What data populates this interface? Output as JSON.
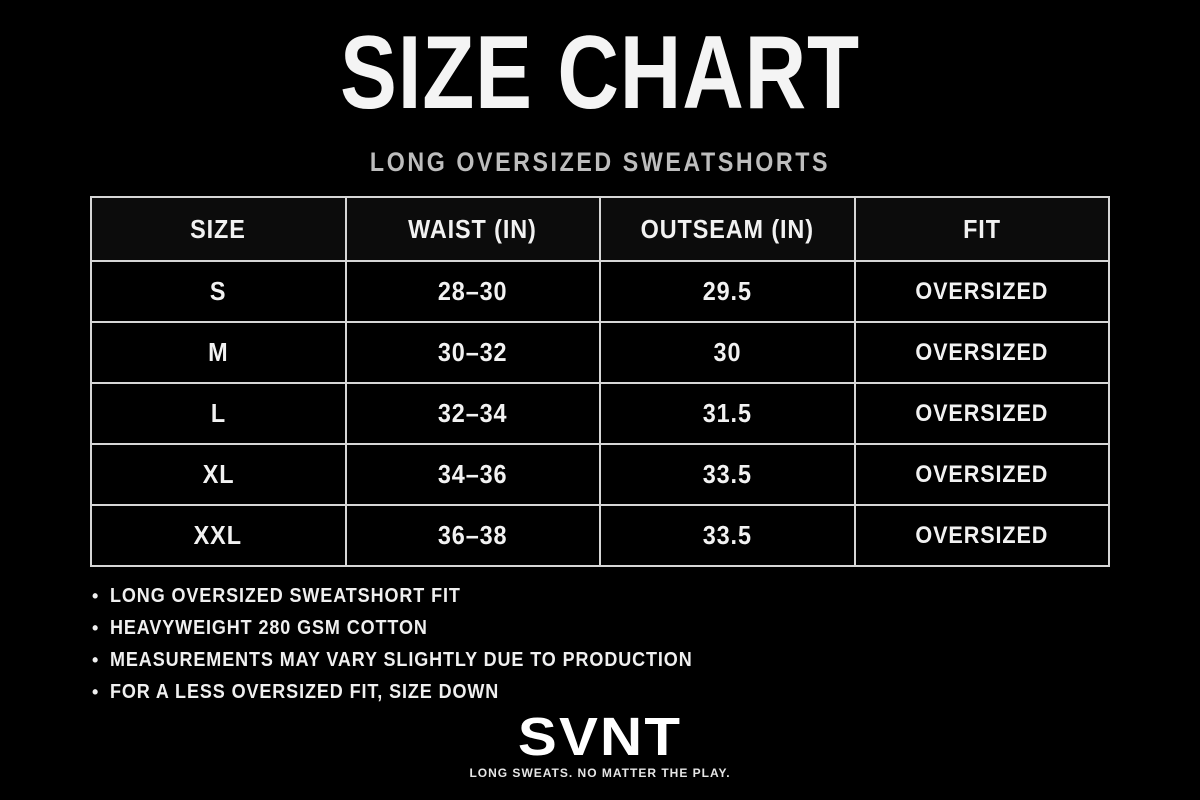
{
  "title": "SIZE CHART",
  "subtitle": "LONG OVERSIZED SWEATSHORTS",
  "table": {
    "headers": [
      "SIZE",
      "WAIST (IN)",
      "OUTSEAM (IN)",
      "FIT"
    ],
    "rows": [
      [
        "S",
        "28–30",
        "29.5",
        "OVERSIZED"
      ],
      [
        "M",
        "30–32",
        "30",
        "OVERSIZED"
      ],
      [
        "L",
        "32–34",
        "31.5",
        "OVERSIZED"
      ],
      [
        "XL",
        "34–36",
        "33.5",
        "OVERSIZED"
      ],
      [
        "XXL",
        "36–38",
        "33.5",
        "OVERSIZED"
      ]
    ]
  },
  "notes": [
    "LONG OVERSIZED SWEATSHORT FIT",
    "HEAVYWEIGHT 280 GSM COTTON",
    "MEASUREMENTS MAY VARY SLIGHTLY DUE TO PRODUCTION",
    "FOR A LESS OVERSIZED FIT, SIZE DOWN"
  ],
  "bullet_char": "•",
  "brand": {
    "logo": "SVNT",
    "tagline": "LONG SWEATS. NO MATTER THE PLAY."
  },
  "colors": {
    "background": "#000000",
    "text": "#ffffff",
    "subtitle": "#bdbdbd",
    "table_border": "#d6d6d6"
  }
}
